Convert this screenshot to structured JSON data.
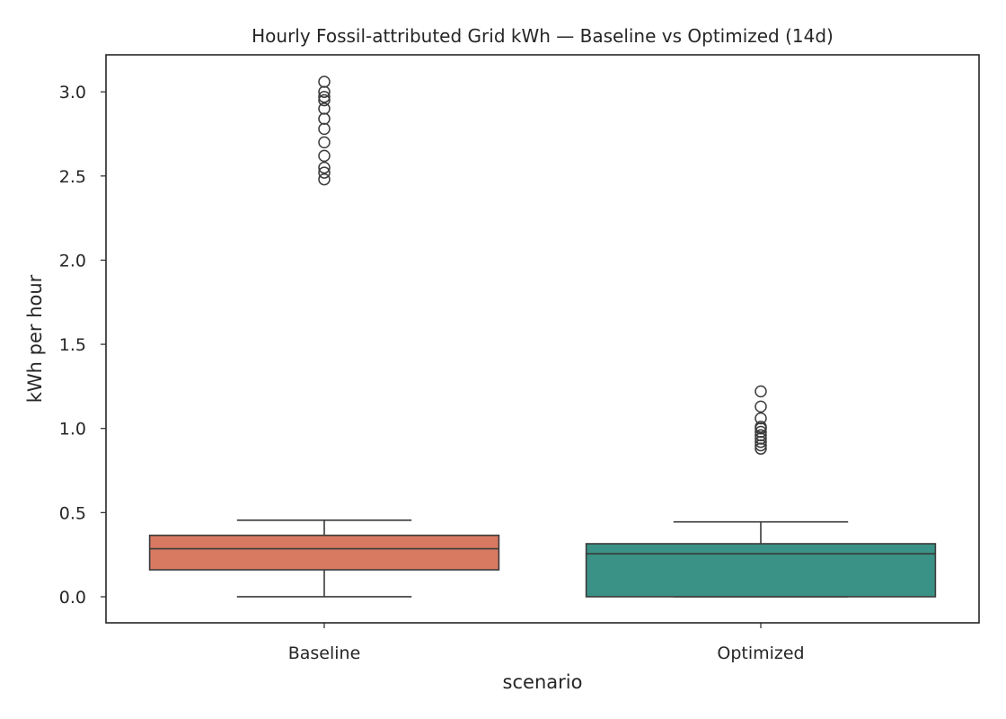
{
  "chart_data": {
    "type": "box",
    "title": "Hourly Fossil-attributed Grid kWh — Baseline vs Optimized (14d)",
    "xlabel": "scenario",
    "ylabel": "kWh per hour",
    "ylim": [
      -0.155,
      3.22
    ],
    "yticks": [
      "0.0",
      "0.5",
      "1.0",
      "1.5",
      "2.0",
      "2.5",
      "3.0"
    ],
    "ytick_values": [
      0.0,
      0.5,
      1.0,
      1.5,
      2.0,
      2.5,
      3.0
    ],
    "categories": [
      "Baseline",
      "Optimized"
    ],
    "grid": false,
    "legend": "none",
    "series": [
      {
        "category": "Baseline",
        "color": "#d77a61",
        "whisker_low": 0.0,
        "q1": 0.16,
        "median": 0.285,
        "q3": 0.365,
        "whisker_high": 0.455,
        "outliers": [
          2.48,
          2.52,
          2.55,
          2.62,
          2.7,
          2.78,
          2.84,
          2.9,
          2.95,
          2.97,
          3.0,
          3.06
        ]
      },
      {
        "category": "Optimized",
        "color": "#3a9185",
        "whisker_low": 0.0,
        "q1": 0.0,
        "median": 0.255,
        "q3": 0.315,
        "whisker_high": 0.445,
        "outliers": [
          0.88,
          0.9,
          0.92,
          0.94,
          0.96,
          0.98,
          1.0,
          1.01,
          1.06,
          1.13,
          1.22
        ]
      }
    ]
  }
}
